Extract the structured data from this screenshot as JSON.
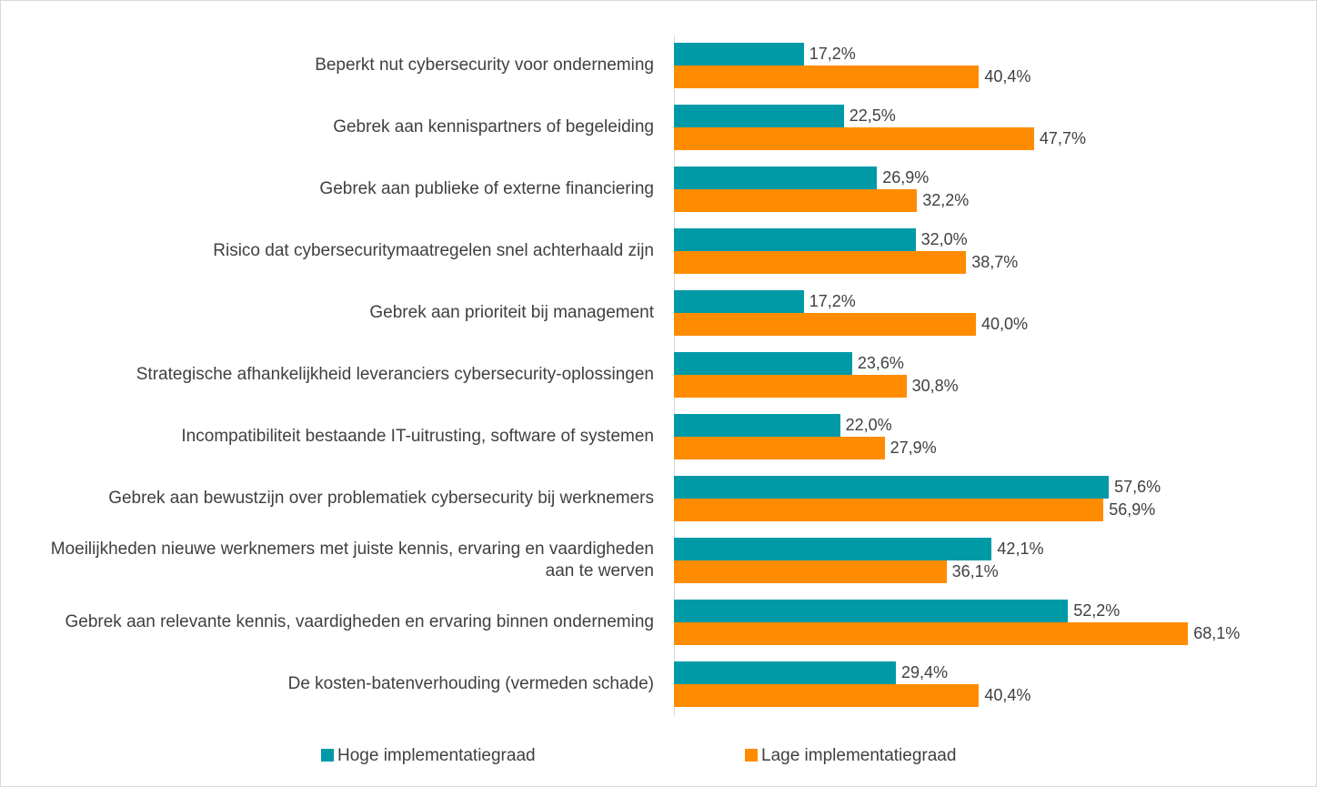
{
  "chart_data": {
    "type": "bar",
    "orientation": "horizontal",
    "categories": [
      "Beperkt nut cybersecurity voor onderneming",
      "Gebrek aan kennispartners of begeleiding",
      "Gebrek aan publieke of externe financiering",
      "Risico dat cybersecuritymaatregelen snel achterhaald zijn",
      "Gebrek aan prioriteit bij management",
      "Strategische afhankelijkheid leveranciers cybersecurity-oplossingen",
      "Incompatibiliteit bestaande IT-uitrusting, software of systemen",
      "Gebrek aan bewustzijn over problematiek cybersecurity bij werknemers",
      "Moeilijkheden nieuwe werknemers met juiste kennis, ervaring en vaardigheden aan te werven",
      "Gebrek aan relevante kennis, vaardigheden en ervaring binnen onderneming",
      "De kosten-batenverhouding (vermeden schade)"
    ],
    "series": [
      {
        "name": "Hoge implementatiegraad",
        "color": "#009aa6",
        "values": [
          17.2,
          22.5,
          26.9,
          32.0,
          17.2,
          23.6,
          22.0,
          57.6,
          42.1,
          52.2,
          29.4
        ],
        "value_labels": [
          "17,2%",
          "22,5%",
          "26,9%",
          "32,0%",
          "17,2%",
          "23,6%",
          "22,0%",
          "57,6%",
          "42,1%",
          "52,2%",
          "29,4%"
        ]
      },
      {
        "name": "Lage implementatiegraad",
        "color": "#ff8c00",
        "values": [
          40.4,
          47.7,
          32.2,
          38.7,
          40.0,
          30.8,
          27.9,
          56.9,
          36.1,
          68.1,
          40.4
        ],
        "value_labels": [
          "40,4%",
          "47,7%",
          "32,2%",
          "38,7%",
          "40,0%",
          "30,8%",
          "27,9%",
          "56,9%",
          "36,1%",
          "68,1%",
          "40,4%"
        ]
      }
    ],
    "xlim": [
      0,
      80
    ],
    "legend": "bottom"
  }
}
